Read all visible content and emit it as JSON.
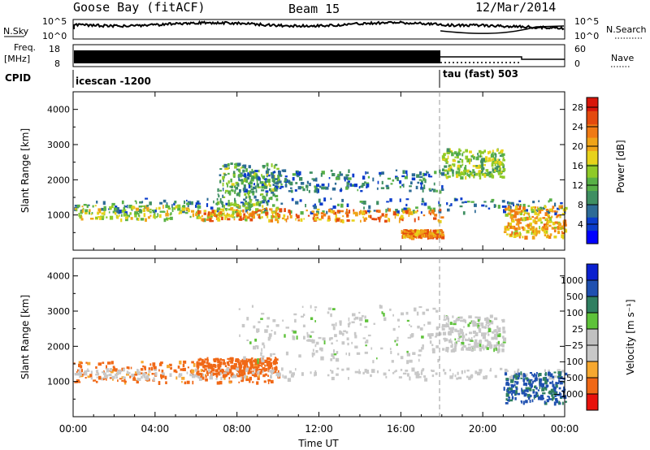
{
  "header": {
    "station": "Goose Bay (fitACF)",
    "beam": "Beam 15",
    "date": "12/Mar/2014"
  },
  "top_panels": {
    "nsky_label": "N.Sky",
    "nsearch_label": "N.Search",
    "noise_ticks_left": [
      "10^5",
      "10^0"
    ],
    "noise_ticks_right": [
      "10^5",
      "10^0"
    ],
    "freq_label_line1": "Freq.",
    "freq_label_line2": "[MHz]",
    "freq_ticks": [
      "18",
      "8"
    ],
    "nave_label": "Nave",
    "nave_ticks": [
      "60",
      "0"
    ],
    "cpid_label": "CPID",
    "cpid_segments": [
      {
        "label": "icescan -1200",
        "start_hour": 0,
        "end_hour": 18
      },
      {
        "label": "tau (fast) 503",
        "start_hour": 18,
        "end_hour": 24
      }
    ]
  },
  "colors": {
    "power_scale": [
      "#0000ff",
      "#0a3ccc",
      "#2d6b96",
      "#3f8f62",
      "#58b046",
      "#8fca28",
      "#e7d21b",
      "#f0a418",
      "#f07a14",
      "#e44a0e",
      "#d8160a"
    ],
    "velocity_scale": [
      "#e8120c",
      "#f06816",
      "#f6a830",
      "#c8c8c8",
      "#c0c0c0",
      "#5ec23a",
      "#2f7f60",
      "#1f50b0",
      "#0a20d0"
    ]
  },
  "chart_data": [
    {
      "type": "heatmap",
      "name": "power",
      "xlabel": "",
      "ylabel": "Slant Range [km]",
      "xlim": [
        0,
        24
      ],
      "ylim": [
        0,
        4500
      ],
      "yticks": [
        1000,
        2000,
        3000,
        4000
      ],
      "colorbar": {
        "label": "Power [dB]",
        "ticks": [
          4,
          8,
          12,
          16,
          20,
          24,
          28
        ],
        "range": [
          0,
          30
        ]
      },
      "echo_bands": [
        {
          "x": [
            0,
            24
          ],
          "range_km": [
            1100,
            1500
          ],
          "value": 8
        },
        {
          "x": [
            0,
            10
          ],
          "range_km": [
            900,
            1300
          ],
          "value": 16
        },
        {
          "x": [
            6,
            18
          ],
          "range_km": [
            850,
            1200
          ],
          "value": 22
        },
        {
          "x": [
            7,
            10
          ],
          "range_km": [
            1300,
            2500
          ],
          "value": 12
        },
        {
          "x": [
            8,
            18
          ],
          "range_km": [
            1700,
            2300
          ],
          "value": 8
        },
        {
          "x": [
            18,
            21
          ],
          "range_km": [
            2100,
            2900
          ],
          "value": 14
        },
        {
          "x": [
            21,
            24
          ],
          "range_km": [
            400,
            1300
          ],
          "value": 20
        },
        {
          "x": [
            16,
            18
          ],
          "range_km": [
            400,
            600
          ],
          "value": 22
        }
      ]
    },
    {
      "type": "heatmap",
      "name": "velocity",
      "xlabel": "Time UT",
      "ylabel": "Slant Range [km]",
      "xlim": [
        0,
        24
      ],
      "ylim": [
        0,
        4500
      ],
      "xticks": [
        "00:00",
        "04:00",
        "08:00",
        "12:00",
        "16:00",
        "20:00",
        "00:00"
      ],
      "yticks": [
        1000,
        2000,
        3000,
        4000
      ],
      "colorbar": {
        "label": "Velocity [m s⁻¹]",
        "ticks": [
          "1000",
          "500",
          "100",
          "25",
          "−25",
          "−100",
          "−500",
          "−1000"
        ],
        "range": [
          -1000,
          1000
        ]
      },
      "echo_bands": [
        {
          "x": [
            0,
            10
          ],
          "range_km": [
            1000,
            1600
          ],
          "value": -150
        },
        {
          "x": [
            6,
            10
          ],
          "range_km": [
            1200,
            1700
          ],
          "value": -300
        },
        {
          "x": [
            0,
            24
          ],
          "range_km": [
            1100,
            1400
          ],
          "value": 0
        },
        {
          "x": [
            8,
            18
          ],
          "range_km": [
            1600,
            3200
          ],
          "value": 10
        },
        {
          "x": [
            18,
            21
          ],
          "range_km": [
            1900,
            2900
          ],
          "value": 10
        },
        {
          "x": [
            21,
            24
          ],
          "range_km": [
            400,
            1300
          ],
          "value": 600
        }
      ]
    }
  ]
}
